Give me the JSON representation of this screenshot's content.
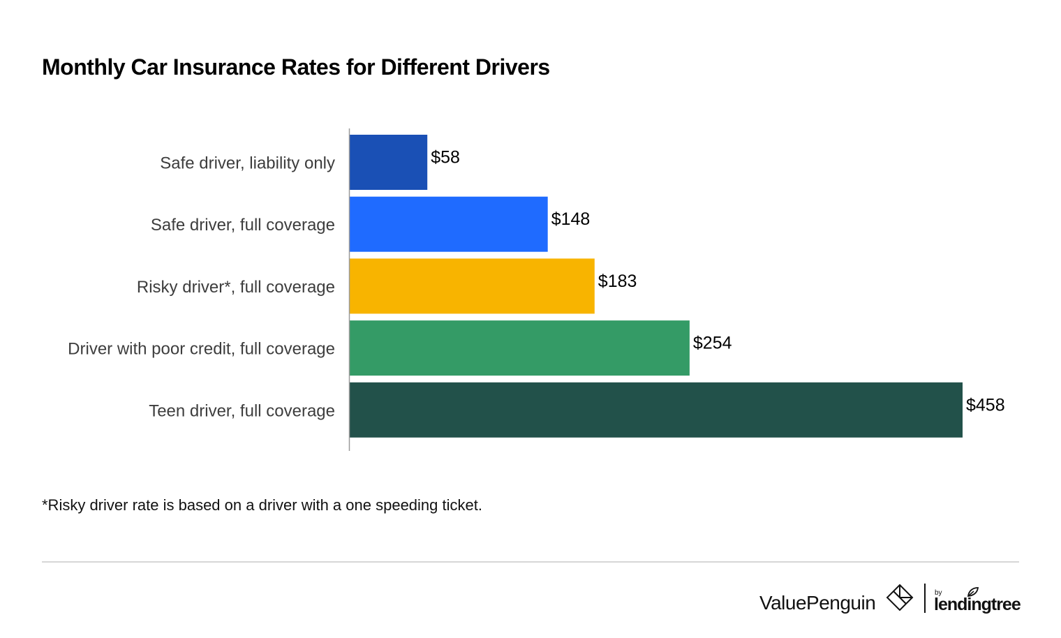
{
  "title": "Monthly Car Insurance Rates for Different Drivers",
  "footnote": "*Risky driver rate is based on a driver with a one speeding ticket.",
  "brand": {
    "name": "ValuePenguin",
    "by": "by",
    "partner": "lendingtree"
  },
  "chart_data": {
    "type": "bar",
    "orientation": "horizontal",
    "title": "Monthly Car Insurance Rates for Different Drivers",
    "xlabel": "",
    "ylabel": "",
    "grid": false,
    "value_prefix": "$",
    "xlim": [
      0,
      458
    ],
    "categories": [
      "Safe driver, liability only",
      "Safe driver, full coverage",
      "Risky driver*, full coverage",
      "Driver with poor credit, full coverage",
      "Teen driver, full coverage"
    ],
    "values": [
      58,
      148,
      183,
      254,
      458
    ],
    "value_labels": [
      "$58",
      "$148",
      "$183",
      "$254",
      "$458"
    ],
    "colors": [
      "#1a50b5",
      "#1f6bff",
      "#f8b400",
      "#349b66",
      "#22514a"
    ]
  }
}
